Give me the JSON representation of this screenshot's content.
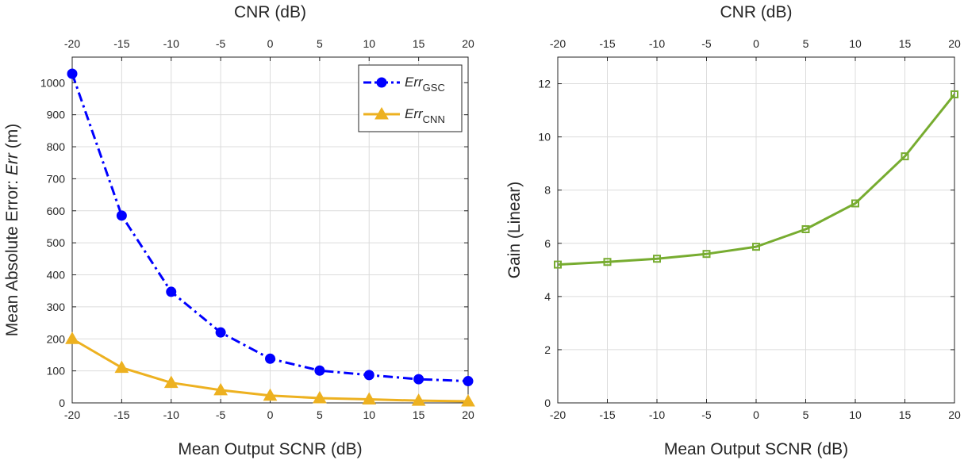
{
  "chart_data": [
    {
      "type": "line",
      "title": "",
      "xlabel": "Mean Output SCNR (dB)",
      "x2label": "CNR (dB)",
      "ylabel_plain": "Mean Absolute Error: ",
      "ylabel_italic": "Err",
      "ylabel_unit": " (m)",
      "x": [
        -20,
        -15,
        -10,
        -5,
        0,
        5,
        10,
        15,
        20
      ],
      "xlim": [
        -20,
        20
      ],
      "ylim": [
        0,
        1080
      ],
      "yticks": [
        0,
        100,
        200,
        300,
        400,
        500,
        600,
        700,
        800,
        900,
        1000
      ],
      "grid": true,
      "legend": "top-right",
      "series": [
        {
          "name_main": "Err",
          "name_sub": "GSC",
          "color": "#0000ff",
          "marker": "circle",
          "linestyle": "dash-dot",
          "values": [
            1028,
            585,
            347,
            220,
            138,
            101,
            87,
            74,
            68
          ]
        },
        {
          "name_main": "Err",
          "name_sub": "CNN",
          "color": "#edb120",
          "marker": "triangle",
          "linestyle": "solid",
          "values": [
            200,
            110,
            63,
            40,
            23,
            15,
            11,
            7,
            5
          ]
        }
      ]
    },
    {
      "type": "line",
      "title": "",
      "xlabel": "Mean Output SCNR (dB)",
      "x2label": "CNR (dB)",
      "ylabel": "Gain (Linear)",
      "x": [
        -20,
        -15,
        -10,
        -5,
        0,
        5,
        10,
        15,
        20
      ],
      "xlim": [
        -20,
        20
      ],
      "ylim": [
        0,
        13
      ],
      "yticks": [
        0,
        2,
        4,
        6,
        8,
        10,
        12
      ],
      "grid": true,
      "series": [
        {
          "color": "#77ac30",
          "marker": "square",
          "linestyle": "solid",
          "values": [
            5.2,
            5.3,
            5.42,
            5.6,
            5.87,
            6.53,
            7.5,
            9.27,
            11.6
          ]
        }
      ]
    }
  ]
}
